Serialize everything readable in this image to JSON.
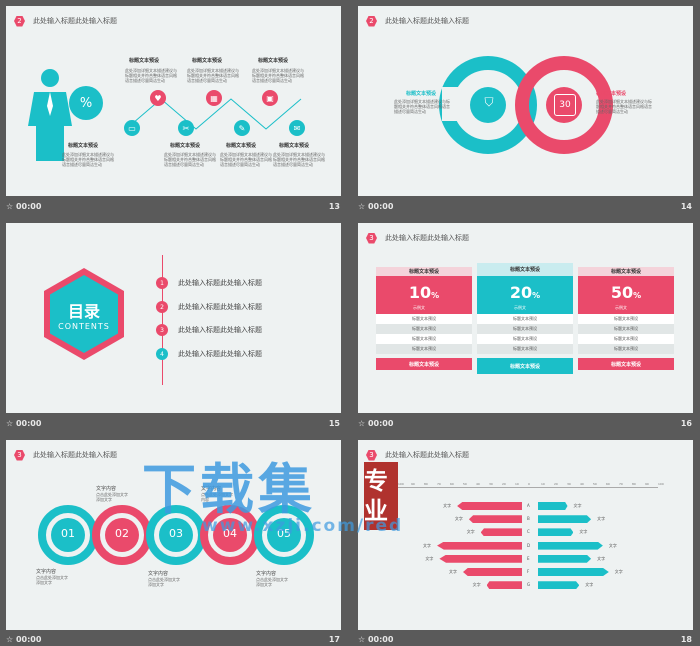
{
  "slide_title": "此处输入标题此处输入标题",
  "footer_time": "00:00",
  "slides": {
    "s13": {
      "badge": "2",
      "number": "13",
      "percent_symbol": "%",
      "heading": "标题文本预设",
      "desc": "此处添加详细文本描述建议与标题相关并符合整体语言风格语言描述尽量简洁生动"
    },
    "s14": {
      "badge": "2",
      "number": "14",
      "heading": "标题文本预设",
      "desc_line1": "此处添加详细文本描述建议与标",
      "desc_line2": "题相关并符合整体语言风格语言",
      "desc_line3": "描述尽量简洁生动",
      "calendar_day": "30"
    },
    "s15": {
      "number": "15",
      "toc_title": "目录",
      "toc_subtitle": "CONTENTS",
      "items": [
        {
          "n": "1",
          "text": "此处输入标题此处输入标题"
        },
        {
          "n": "2",
          "text": "此处输入标题此处输入标题"
        },
        {
          "n": "3",
          "text": "此处输入标题此处输入标题"
        },
        {
          "n": "4",
          "text": "此处输入标题此处输入标题"
        }
      ]
    },
    "s16": {
      "badge": "3",
      "number": "16",
      "columns": [
        {
          "head": "标题文本预设",
          "value": "10",
          "unit": "%",
          "sub": "示例文",
          "row": "标题文本预设",
          "foot": "标题文本预设"
        },
        {
          "head": "标题文本预设",
          "value": "20",
          "unit": "%",
          "sub": "示例文",
          "row": "标题文本预设",
          "foot": "标题文本预设"
        },
        {
          "head": "标题文本预设",
          "value": "50",
          "unit": "%",
          "sub": "示例文",
          "row": "标题文本预设",
          "foot": "标题文本预设"
        }
      ]
    },
    "s17": {
      "badge": "3",
      "number": "17",
      "steps": [
        "01",
        "02",
        "03",
        "04",
        "05"
      ],
      "label": "文字内容",
      "desc_line1": "点击此处添加文字",
      "desc_line2": "内容",
      "desc_line3": "添加文字"
    },
    "s18": {
      "badge": "3",
      "number": "18",
      "letters": [
        "A",
        "B",
        "C",
        "D",
        "E",
        "F",
        "G"
      ],
      "tag": "文字",
      "left_values": [
        0.55,
        0.45,
        0.35,
        0.72,
        0.7,
        0.5,
        0.3
      ],
      "right_values": [
        0.25,
        0.45,
        0.3,
        0.55,
        0.45,
        0.6,
        0.35
      ],
      "axis_ticks": [
        "100",
        "90",
        "80",
        "70",
        "60",
        "50",
        "40",
        "30",
        "20",
        "10",
        "0",
        "10",
        "20",
        "30",
        "40",
        "50",
        "60",
        "70",
        "80",
        "90",
        "100"
      ]
    }
  },
  "watermark": {
    "big": "下载集",
    "seal": "专业",
    "url": "www.xzji.com/red"
  },
  "colors": {
    "pink": "#ea4a6b",
    "teal": "#1bbfc8"
  }
}
